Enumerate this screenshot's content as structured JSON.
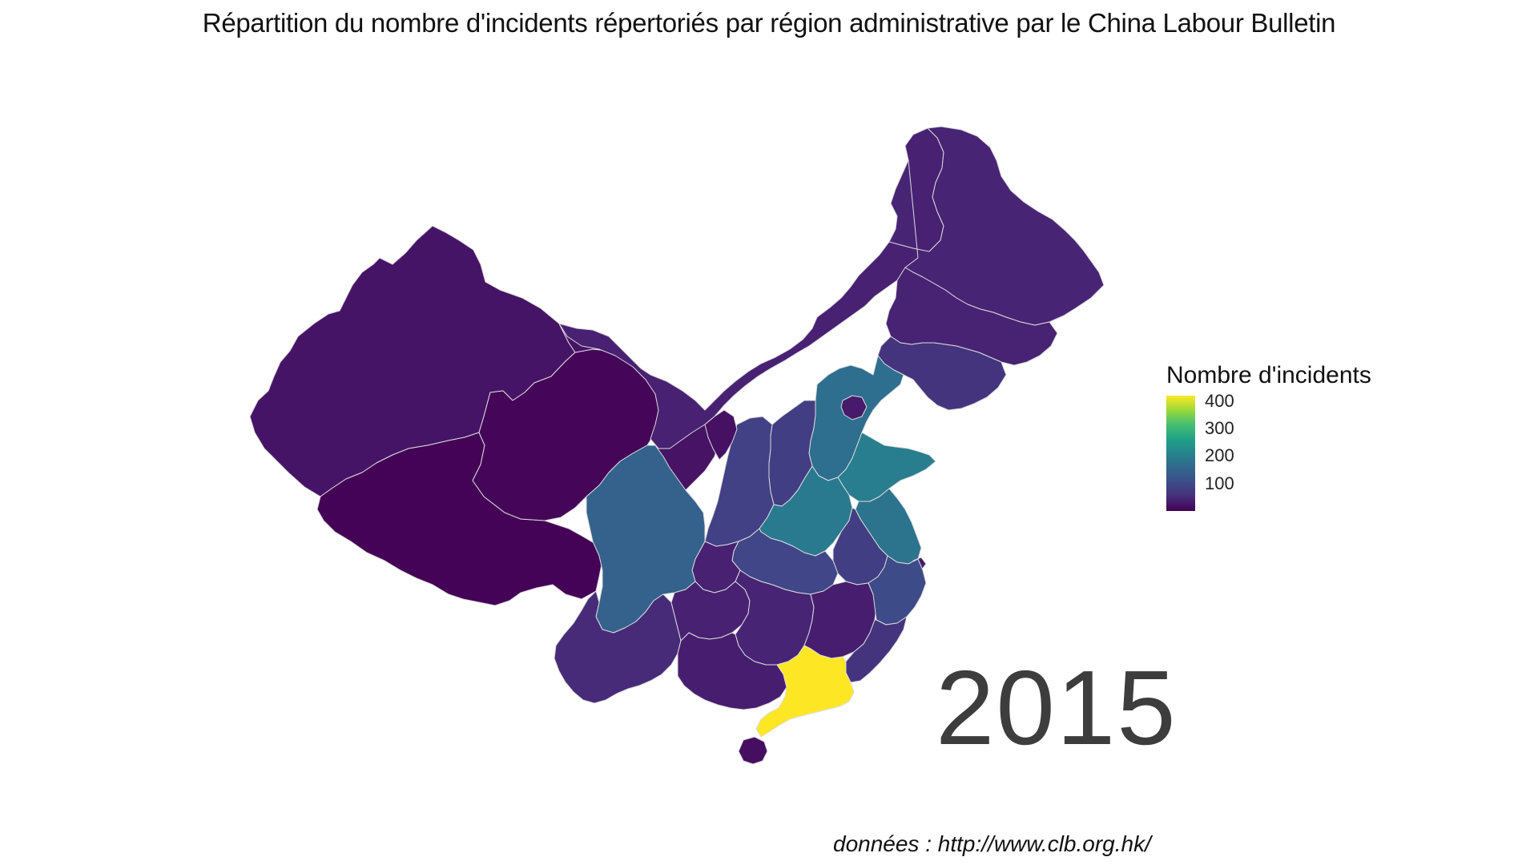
{
  "title": "Répartition du nombre d'incidents répertoriés par région administrative par le China Labour Bulletin",
  "year": "2015",
  "caption": "données : http://www.clb.org.hk/",
  "legend": {
    "title": "Nombre d'incidents",
    "ticks": [
      {
        "value": 400,
        "label": "400"
      },
      {
        "value": 300,
        "label": "300"
      },
      {
        "value": 200,
        "label": "200"
      },
      {
        "value": 100,
        "label": "100"
      }
    ],
    "min": 0,
    "max": 420,
    "colormap": "viridis"
  },
  "regions": [
    {
      "id": "xinjiang",
      "value": 30
    },
    {
      "id": "tibet",
      "value": 3
    },
    {
      "id": "qinghai",
      "value": 8
    },
    {
      "id": "gansu",
      "value": 28
    },
    {
      "id": "inner-mongolia",
      "value": 50
    },
    {
      "id": "heilongjiang",
      "value": 55
    },
    {
      "id": "jilin",
      "value": 52
    },
    {
      "id": "liaoning",
      "value": 80
    },
    {
      "id": "hebei",
      "value": 190
    },
    {
      "id": "beijing",
      "value": 40
    },
    {
      "id": "shanxi",
      "value": 95
    },
    {
      "id": "shaanxi",
      "value": 100
    },
    {
      "id": "ningxia",
      "value": 25
    },
    {
      "id": "shandong",
      "value": 220
    },
    {
      "id": "henan",
      "value": 215
    },
    {
      "id": "jiangsu",
      "value": 200
    },
    {
      "id": "anhui",
      "value": 95
    },
    {
      "id": "hubei",
      "value": 110
    },
    {
      "id": "chongqing",
      "value": 50
    },
    {
      "id": "sichuan",
      "value": 165
    },
    {
      "id": "yunnan",
      "value": 65
    },
    {
      "id": "guizhou",
      "value": 50
    },
    {
      "id": "hunan",
      "value": 55
    },
    {
      "id": "jiangxi",
      "value": 45
    },
    {
      "id": "zhejiang",
      "value": 120
    },
    {
      "id": "fujian",
      "value": 80
    },
    {
      "id": "guangxi",
      "value": 45
    },
    {
      "id": "guangdong",
      "value": 420
    },
    {
      "id": "hainan",
      "value": 20
    },
    {
      "id": "shanghai",
      "value": 40
    }
  ]
}
